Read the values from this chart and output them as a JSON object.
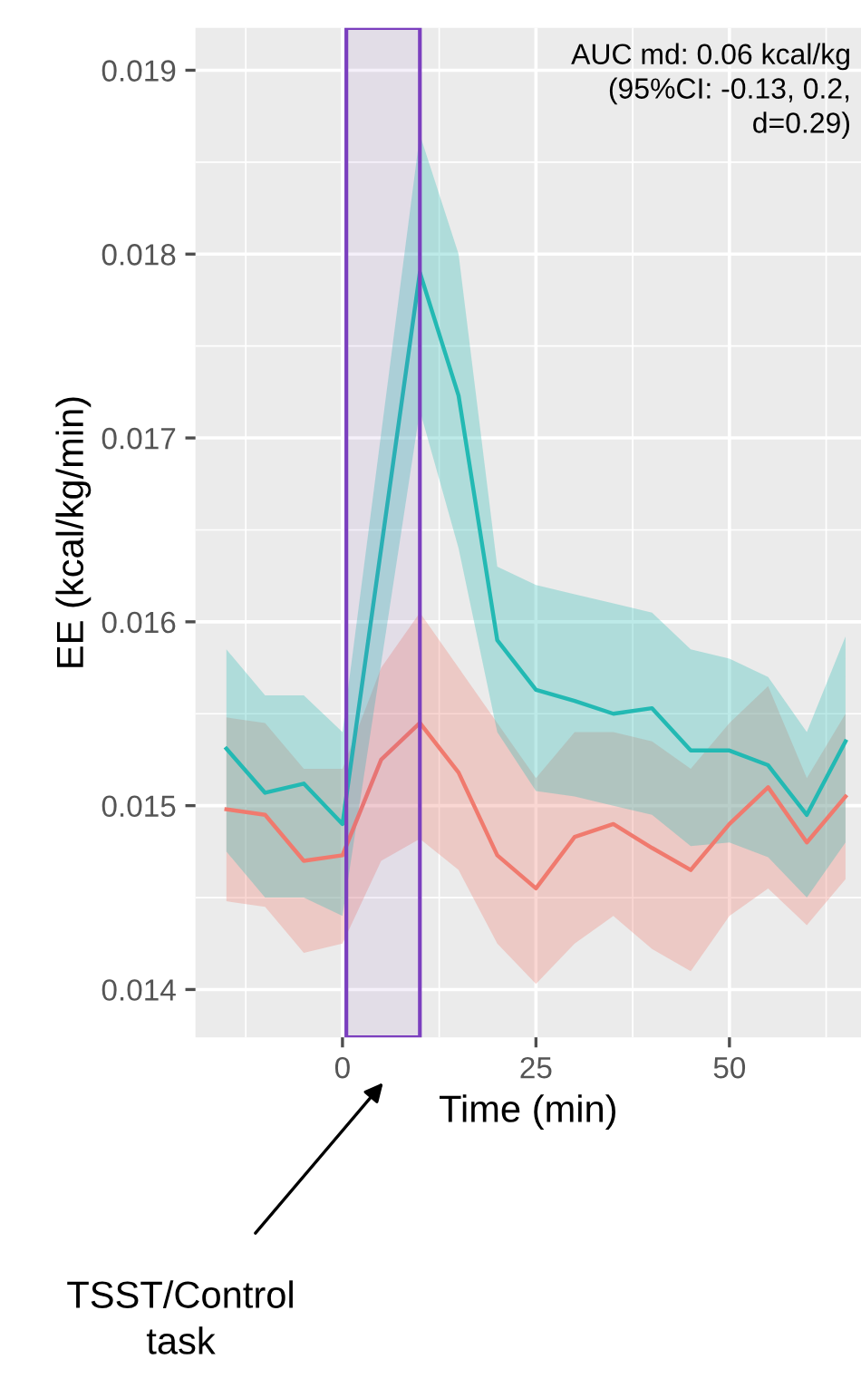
{
  "chart_data": {
    "type": "line",
    "xlabel": "Time (min)",
    "ylabel": "EE (kcal/kg/min)",
    "xlim": [
      -19,
      67
    ],
    "ylim": [
      0.01374,
      0.01923
    ],
    "xticks": [
      0,
      25,
      50
    ],
    "yticks": [
      0.014,
      0.015,
      0.016,
      0.017,
      0.018,
      0.019
    ],
    "grid": true,
    "marker": "none",
    "line_style": "solid",
    "series": [
      {
        "color": "#f07a6e",
        "x": [
          -15,
          -10,
          -5,
          0,
          5,
          10,
          15,
          20,
          25,
          30,
          35,
          40,
          45,
          50,
          55,
          60,
          65
        ],
        "values": [
          0.01498,
          0.01495,
          0.0147,
          0.01473,
          0.01525,
          0.01545,
          0.01518,
          0.01473,
          0.01455,
          0.01483,
          0.0149,
          0.01477,
          0.01465,
          0.0149,
          0.0151,
          0.0148,
          0.01505
        ],
        "lower": [
          0.01448,
          0.01445,
          0.0142,
          0.01425,
          0.0147,
          0.01482,
          0.01465,
          0.01425,
          0.01403,
          0.01425,
          0.0144,
          0.01422,
          0.0141,
          0.0144,
          0.01455,
          0.01435,
          0.0146
        ],
        "upper": [
          0.01548,
          0.01545,
          0.0152,
          0.0152,
          0.01575,
          0.01605,
          0.01575,
          0.01545,
          0.01515,
          0.0154,
          0.0154,
          0.01535,
          0.0152,
          0.01545,
          0.01565,
          0.01515,
          0.0155
        ]
      },
      {
        "color": "#23b9b3",
        "x": [
          -15,
          -10,
          -5,
          0,
          10,
          15,
          20,
          25,
          30,
          35,
          40,
          45,
          50,
          55,
          60,
          65
        ],
        "values": [
          0.01531,
          0.01507,
          0.01512,
          0.0149,
          0.0179,
          0.01723,
          0.0159,
          0.01563,
          0.01557,
          0.0155,
          0.01553,
          0.0153,
          0.0153,
          0.01522,
          0.01495,
          0.01535
        ],
        "lower": [
          0.01475,
          0.0145,
          0.0145,
          0.0144,
          0.01715,
          0.0164,
          0.0154,
          0.01508,
          0.01505,
          0.015,
          0.01495,
          0.01478,
          0.0148,
          0.01472,
          0.0145,
          0.0148
        ],
        "upper": [
          0.01585,
          0.0156,
          0.0156,
          0.0154,
          0.01865,
          0.018,
          0.0163,
          0.0162,
          0.01615,
          0.0161,
          0.01605,
          0.01585,
          0.0158,
          0.0157,
          0.0154,
          0.01592
        ]
      }
    ],
    "bands": [
      {
        "axis": "x",
        "from": 0.5,
        "to": 10,
        "color": "#7b3fbf"
      }
    ],
    "annotations": [
      "AUC md: 0.06 kcal/kg\n(95%CI: -0.13, 0.2,\nd=0.29)",
      "TSST/Control\ntask"
    ]
  }
}
